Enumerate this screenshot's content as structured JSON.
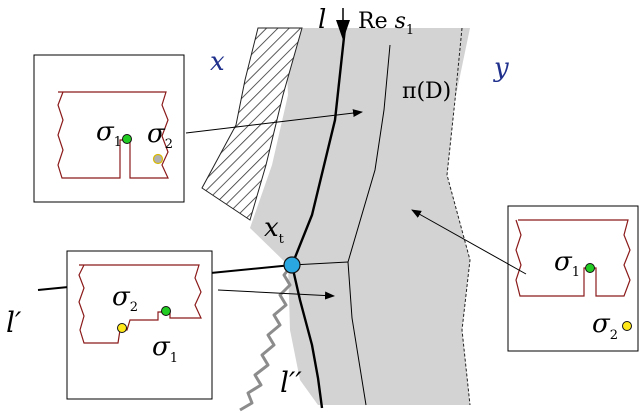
{
  "labels": {
    "l": "l",
    "re_prefix": "Re ",
    "s": "s",
    "s_sub": "1",
    "x_region": "x",
    "y_region": "y",
    "pi_d": "π(D)",
    "x_t": "x",
    "x_t_sub": "t",
    "l_prime": "l′",
    "l_double_prime": "l′′"
  },
  "insets": {
    "top_left": {
      "sigma_a": "σ",
      "sigma_a_sub": "1",
      "sigma_b": "σ",
      "sigma_b_sub": "2"
    },
    "middle_left": {
      "sigma_a": "σ",
      "sigma_a_sub": "2",
      "sigma_b": "σ",
      "sigma_b_sub": "1"
    },
    "right": {
      "sigma_a": "σ",
      "sigma_a_sub": "1",
      "sigma_b": "σ",
      "sigma_b_sub": "2"
    }
  },
  "colors": {
    "region_fill": "#d3d3d3",
    "curve_dark_red": "#8b1a1a",
    "point_green": "#22cc22",
    "point_yellow": "#ffe81a",
    "point_blue": "#2aa7e0",
    "point_grey": "#b0b0b0",
    "label_blue": "#1f2f8c",
    "branch_cut": "#8c8c8c"
  }
}
